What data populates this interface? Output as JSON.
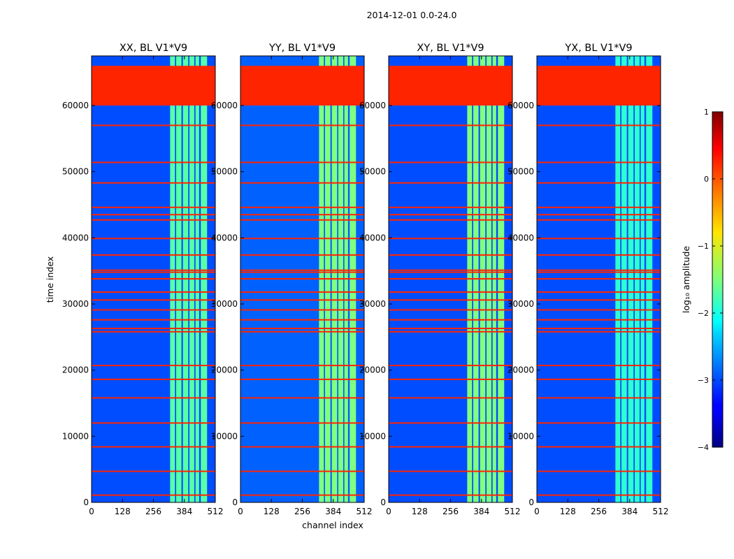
{
  "chart_data": {
    "type": "heatmap",
    "suptitle": "2014-12-01 0.0-24.0",
    "xlabel": "channel index",
    "ylabel": "time index",
    "xlim": [
      0,
      512
    ],
    "ylim": [
      0,
      67500
    ],
    "x_ticks": [
      0,
      128,
      256,
      384,
      512
    ],
    "x_tick_labels": [
      "0",
      "128",
      "256",
      "384",
      "512"
    ],
    "y_ticks": [
      0,
      10000,
      20000,
      30000,
      40000,
      50000,
      60000
    ],
    "y_tick_labels": [
      "0",
      "10000",
      "20000",
      "30000",
      "40000",
      "50000",
      "60000"
    ],
    "panels": [
      {
        "title": "XX, BL V1*V9",
        "band_amplitude": -1.7,
        "background_amplitude": -3.0
      },
      {
        "title": "YY, BL V1*V9",
        "band_amplitude": -1.5,
        "background_amplitude": -2.9
      },
      {
        "title": "XY, BL V1*V9",
        "band_amplitude": -1.5,
        "background_amplitude": -3.0
      },
      {
        "title": "YX, BL V1*V9",
        "band_amplitude": -1.9,
        "background_amplitude": -3.0
      }
    ],
    "band_channels": [
      {
        "start": 325,
        "end": 345
      },
      {
        "start": 350,
        "end": 372
      },
      {
        "start": 378,
        "end": 400
      },
      {
        "start": 405,
        "end": 425
      },
      {
        "start": 430,
        "end": 445
      },
      {
        "start": 452,
        "end": 478
      }
    ],
    "flagged_time_block": {
      "start": 60000,
      "end": 66000,
      "amplitude": 0.2
    },
    "flagged_time_lines": [
      1100,
      4700,
      8400,
      12000,
      15800,
      18600,
      20700,
      25800,
      26300,
      27600,
      29100,
      30600,
      31800,
      33800,
      34800,
      35100,
      37400,
      39900,
      42700,
      43500,
      44600,
      48300,
      51400,
      57000
    ],
    "colorbar": {
      "label": "log₁₀ amplitude",
      "range": [
        -4,
        1
      ],
      "ticks": [
        "1",
        "0",
        "−1",
        "−2",
        "−3",
        "−4"
      ],
      "colormap": "jet"
    }
  }
}
